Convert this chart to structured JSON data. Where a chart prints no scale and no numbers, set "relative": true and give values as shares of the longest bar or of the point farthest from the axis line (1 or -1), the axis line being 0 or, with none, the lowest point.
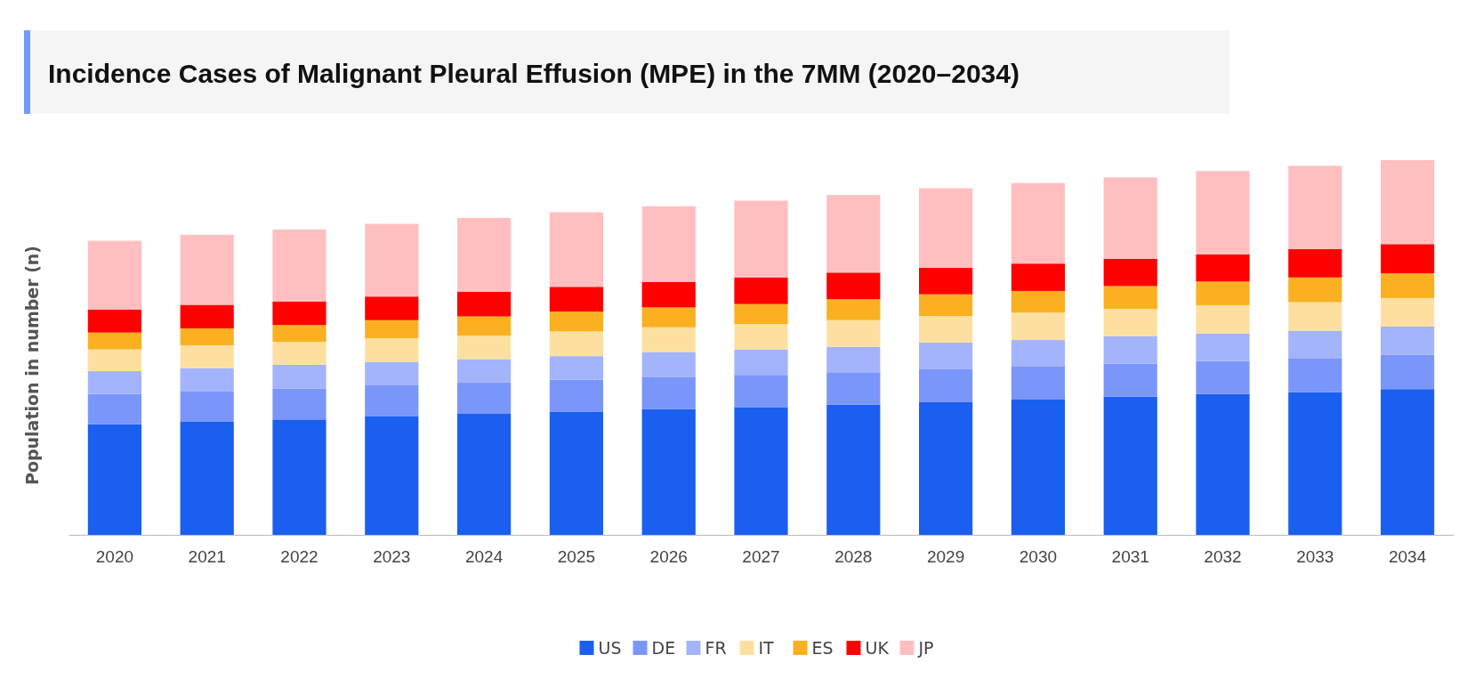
{
  "chart_data": {
    "type": "bar",
    "title": "Incidence Cases of Malignant Pleural Effusion (MPE) in the 7MM (2020–2034)",
    "ylabel": "Population in number (n)",
    "relative": true,
    "stacked": true,
    "legend": "bottom",
    "categories": [
      "2020",
      "2021",
      "2022",
      "2023",
      "2024",
      "2025",
      "2026",
      "2027",
      "2028",
      "2029",
      "2030",
      "2031",
      "2032",
      "2033",
      "2034"
    ],
    "series": [
      {
        "name": "US",
        "color": "#1a5ff0",
        "values": [
          0.295,
          0.303,
          0.308,
          0.316,
          0.323,
          0.328,
          0.336,
          0.341,
          0.348,
          0.354,
          0.361,
          0.369,
          0.376,
          0.381,
          0.389
        ]
      },
      {
        "name": "DE",
        "color": "#7b96fb",
        "values": [
          0.081,
          0.081,
          0.083,
          0.083,
          0.083,
          0.086,
          0.086,
          0.086,
          0.086,
          0.088,
          0.088,
          0.088,
          0.088,
          0.091,
          0.091
        ]
      },
      {
        "name": "FR",
        "color": "#a3b4fc",
        "values": [
          0.061,
          0.061,
          0.063,
          0.063,
          0.063,
          0.063,
          0.066,
          0.068,
          0.068,
          0.071,
          0.071,
          0.073,
          0.073,
          0.073,
          0.076
        ]
      },
      {
        "name": "IT",
        "color": "#fde0a0",
        "values": [
          0.058,
          0.061,
          0.061,
          0.063,
          0.063,
          0.066,
          0.066,
          0.068,
          0.071,
          0.071,
          0.073,
          0.073,
          0.076,
          0.076,
          0.076
        ]
      },
      {
        "name": "ES",
        "color": "#fbb021",
        "values": [
          0.045,
          0.045,
          0.045,
          0.048,
          0.051,
          0.053,
          0.053,
          0.053,
          0.056,
          0.058,
          0.058,
          0.061,
          0.063,
          0.066,
          0.066
        ]
      },
      {
        "name": "UK",
        "color": "#fe0000",
        "values": [
          0.061,
          0.063,
          0.063,
          0.063,
          0.066,
          0.066,
          0.068,
          0.071,
          0.071,
          0.071,
          0.073,
          0.073,
          0.073,
          0.076,
          0.078
        ]
      },
      {
        "name": "JP",
        "color": "#ffbfc0",
        "values": [
          0.184,
          0.187,
          0.192,
          0.194,
          0.197,
          0.199,
          0.202,
          0.205,
          0.207,
          0.212,
          0.215,
          0.217,
          0.222,
          0.222,
          0.224
        ]
      }
    ]
  }
}
